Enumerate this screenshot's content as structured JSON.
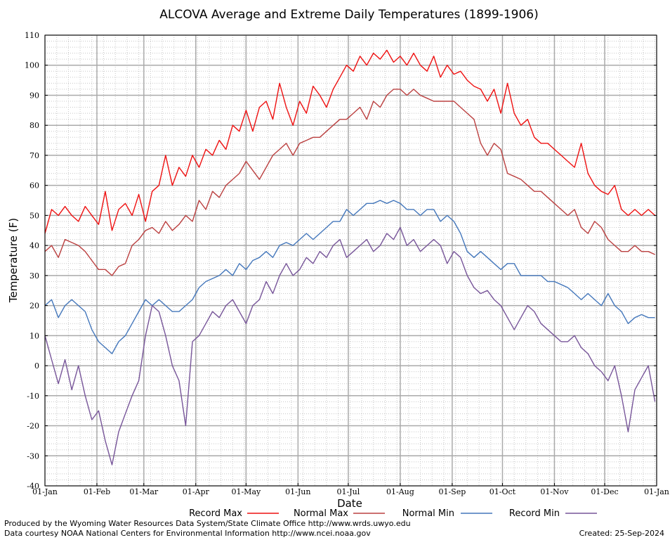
{
  "chart_data": {
    "type": "line",
    "title": "ALCOVA Average and Extreme Daily Temperatures (1899-1906)",
    "xlabel": "Date",
    "ylabel": "Temperature (F)",
    "ylim": [
      -40,
      110
    ],
    "yticks": [
      -40,
      -30,
      -20,
      -10,
      0,
      10,
      20,
      30,
      40,
      50,
      60,
      70,
      80,
      90,
      100,
      110
    ],
    "xticks": [
      {
        "day": 0,
        "label": "01-Jan"
      },
      {
        "day": 31,
        "label": "01-Feb"
      },
      {
        "day": 59,
        "label": "01-Mar"
      },
      {
        "day": 90,
        "label": "01-Apr"
      },
      {
        "day": 120,
        "label": "01-May"
      },
      {
        "day": 151,
        "label": "01-Jun"
      },
      {
        "day": 181,
        "label": "01-Jul"
      },
      {
        "day": 212,
        "label": "01-Aug"
      },
      {
        "day": 243,
        "label": "01-Sep"
      },
      {
        "day": 273,
        "label": "01-Oct"
      },
      {
        "day": 304,
        "label": "01-Nov"
      },
      {
        "day": 334,
        "label": "01-Dec"
      },
      {
        "day": 365,
        "label": "01-Jan"
      }
    ],
    "xlim": [
      0,
      365
    ],
    "grid": true,
    "legend_position": "bottom",
    "series": [
      {
        "name": "Record Max",
        "color": "#ee1111",
        "x": [
          0,
          4,
          8,
          12,
          16,
          20,
          24,
          28,
          32,
          36,
          40,
          44,
          48,
          52,
          56,
          60,
          64,
          68,
          72,
          76,
          80,
          84,
          88,
          92,
          96,
          100,
          104,
          108,
          112,
          116,
          120,
          124,
          128,
          132,
          136,
          140,
          144,
          148,
          152,
          156,
          160,
          164,
          168,
          172,
          176,
          180,
          184,
          188,
          192,
          196,
          200,
          204,
          208,
          212,
          216,
          220,
          224,
          228,
          232,
          236,
          240,
          244,
          248,
          252,
          256,
          260,
          264,
          268,
          272,
          276,
          280,
          284,
          288,
          292,
          296,
          300,
          304,
          308,
          312,
          316,
          320,
          324,
          328,
          332,
          336,
          340,
          344,
          348,
          352,
          356,
          360,
          364
        ],
        "y": [
          44,
          52,
          50,
          53,
          50,
          48,
          53,
          50,
          47,
          58,
          45,
          52,
          54,
          50,
          57,
          48,
          58,
          60,
          70,
          60,
          66,
          63,
          70,
          66,
          72,
          70,
          75,
          72,
          80,
          78,
          85,
          78,
          86,
          88,
          82,
          94,
          86,
          80,
          88,
          84,
          93,
          90,
          86,
          92,
          96,
          100,
          98,
          103,
          100,
          104,
          102,
          105,
          101,
          103,
          100,
          104,
          100,
          98,
          103,
          96,
          100,
          97,
          98,
          95,
          93,
          92,
          88,
          92,
          84,
          94,
          84,
          80,
          82,
          76,
          74,
          74,
          72,
          70,
          68,
          66,
          74,
          64,
          60,
          58,
          57,
          60,
          52,
          50,
          52,
          50,
          52,
          50
        ]
      },
      {
        "name": "Normal Max",
        "color": "#bb4040",
        "x": [
          0,
          4,
          8,
          12,
          16,
          20,
          24,
          28,
          32,
          36,
          40,
          44,
          48,
          52,
          56,
          60,
          64,
          68,
          72,
          76,
          80,
          84,
          88,
          92,
          96,
          100,
          104,
          108,
          112,
          116,
          120,
          124,
          128,
          132,
          136,
          140,
          144,
          148,
          152,
          156,
          160,
          164,
          168,
          172,
          176,
          180,
          184,
          188,
          192,
          196,
          200,
          204,
          208,
          212,
          216,
          220,
          224,
          228,
          232,
          236,
          240,
          244,
          248,
          252,
          256,
          260,
          264,
          268,
          272,
          276,
          280,
          284,
          288,
          292,
          296,
          300,
          304,
          308,
          312,
          316,
          320,
          324,
          328,
          332,
          336,
          340,
          344,
          348,
          352,
          356,
          360,
          364
        ],
        "y": [
          38,
          40,
          36,
          42,
          41,
          40,
          38,
          35,
          32,
          32,
          30,
          33,
          34,
          40,
          42,
          45,
          46,
          44,
          48,
          45,
          47,
          50,
          48,
          55,
          52,
          58,
          56,
          60,
          62,
          64,
          68,
          65,
          62,
          66,
          70,
          72,
          74,
          70,
          74,
          75,
          76,
          76,
          78,
          80,
          82,
          82,
          84,
          86,
          82,
          88,
          86,
          90,
          92,
          92,
          90,
          92,
          90,
          89,
          88,
          88,
          88,
          88,
          86,
          84,
          82,
          74,
          70,
          74,
          72,
          64,
          63,
          62,
          60,
          58,
          58,
          56,
          54,
          52,
          50,
          52,
          46,
          44,
          48,
          46,
          42,
          40,
          38,
          38,
          40,
          38,
          38,
          37
        ]
      },
      {
        "name": "Normal Min",
        "color": "#4477bb",
        "x": [
          0,
          4,
          8,
          12,
          16,
          20,
          24,
          28,
          32,
          36,
          40,
          44,
          48,
          52,
          56,
          60,
          64,
          68,
          72,
          76,
          80,
          84,
          88,
          92,
          96,
          100,
          104,
          108,
          112,
          116,
          120,
          124,
          128,
          132,
          136,
          140,
          144,
          148,
          152,
          156,
          160,
          164,
          168,
          172,
          176,
          180,
          184,
          188,
          192,
          196,
          200,
          204,
          208,
          212,
          216,
          220,
          224,
          228,
          232,
          236,
          240,
          244,
          248,
          252,
          256,
          260,
          264,
          268,
          272,
          276,
          280,
          284,
          288,
          292,
          296,
          300,
          304,
          308,
          312,
          316,
          320,
          324,
          328,
          332,
          336,
          340,
          344,
          348,
          352,
          356,
          360,
          364
        ],
        "y": [
          20,
          22,
          16,
          20,
          22,
          20,
          18,
          12,
          8,
          6,
          4,
          8,
          10,
          14,
          18,
          22,
          20,
          22,
          20,
          18,
          18,
          20,
          22,
          26,
          28,
          29,
          30,
          32,
          30,
          34,
          32,
          35,
          36,
          38,
          36,
          40,
          41,
          40,
          42,
          44,
          42,
          44,
          46,
          48,
          48,
          52,
          50,
          52,
          54,
          54,
          55,
          54,
          55,
          54,
          52,
          52,
          50,
          52,
          52,
          48,
          50,
          48,
          44,
          38,
          36,
          38,
          36,
          34,
          32,
          34,
          34,
          30,
          30,
          30,
          30,
          28,
          28,
          27,
          26,
          24,
          22,
          24,
          22,
          20,
          24,
          20,
          18,
          14,
          16,
          17,
          16,
          16
        ]
      },
      {
        "name": "Record Min",
        "color": "#775599",
        "x": [
          0,
          4,
          8,
          12,
          16,
          20,
          24,
          28,
          32,
          36,
          40,
          44,
          48,
          52,
          56,
          60,
          64,
          68,
          72,
          76,
          80,
          84,
          88,
          92,
          96,
          100,
          104,
          108,
          112,
          116,
          120,
          124,
          128,
          132,
          136,
          140,
          144,
          148,
          152,
          156,
          160,
          164,
          168,
          172,
          176,
          180,
          184,
          188,
          192,
          196,
          200,
          204,
          208,
          212,
          216,
          220,
          224,
          228,
          232,
          236,
          240,
          244,
          248,
          252,
          256,
          260,
          264,
          268,
          272,
          276,
          280,
          284,
          288,
          292,
          296,
          300,
          304,
          308,
          312,
          316,
          320,
          324,
          328,
          332,
          336,
          340,
          344,
          348,
          352,
          356,
          360,
          364
        ],
        "y": [
          10,
          2,
          -6,
          2,
          -8,
          0,
          -10,
          -18,
          -15,
          -25,
          -33,
          -22,
          -16,
          -10,
          -5,
          10,
          20,
          18,
          10,
          0,
          -5,
          -20,
          8,
          10,
          14,
          18,
          16,
          20,
          22,
          18,
          14,
          20,
          22,
          28,
          24,
          30,
          34,
          30,
          32,
          36,
          34,
          38,
          36,
          40,
          42,
          36,
          38,
          40,
          42,
          38,
          40,
          44,
          42,
          46,
          40,
          42,
          38,
          40,
          42,
          40,
          34,
          38,
          36,
          30,
          26,
          24,
          25,
          22,
          20,
          16,
          12,
          16,
          20,
          18,
          14,
          12,
          10,
          8,
          8,
          10,
          6,
          4,
          0,
          -2,
          -5,
          0,
          -10,
          -22,
          -8,
          -4,
          0,
          -12
        ]
      }
    ]
  },
  "footer": {
    "produced_by": "Produced by the Wyoming Water Resources Data System/State Climate Office http://www.wrds.uwyo.edu",
    "data_courtesy": "Data courtesy NOAA National Centers for Environmental Information http://www.ncei.noaa.gov",
    "created": "Created:  25-Sep-2024"
  }
}
